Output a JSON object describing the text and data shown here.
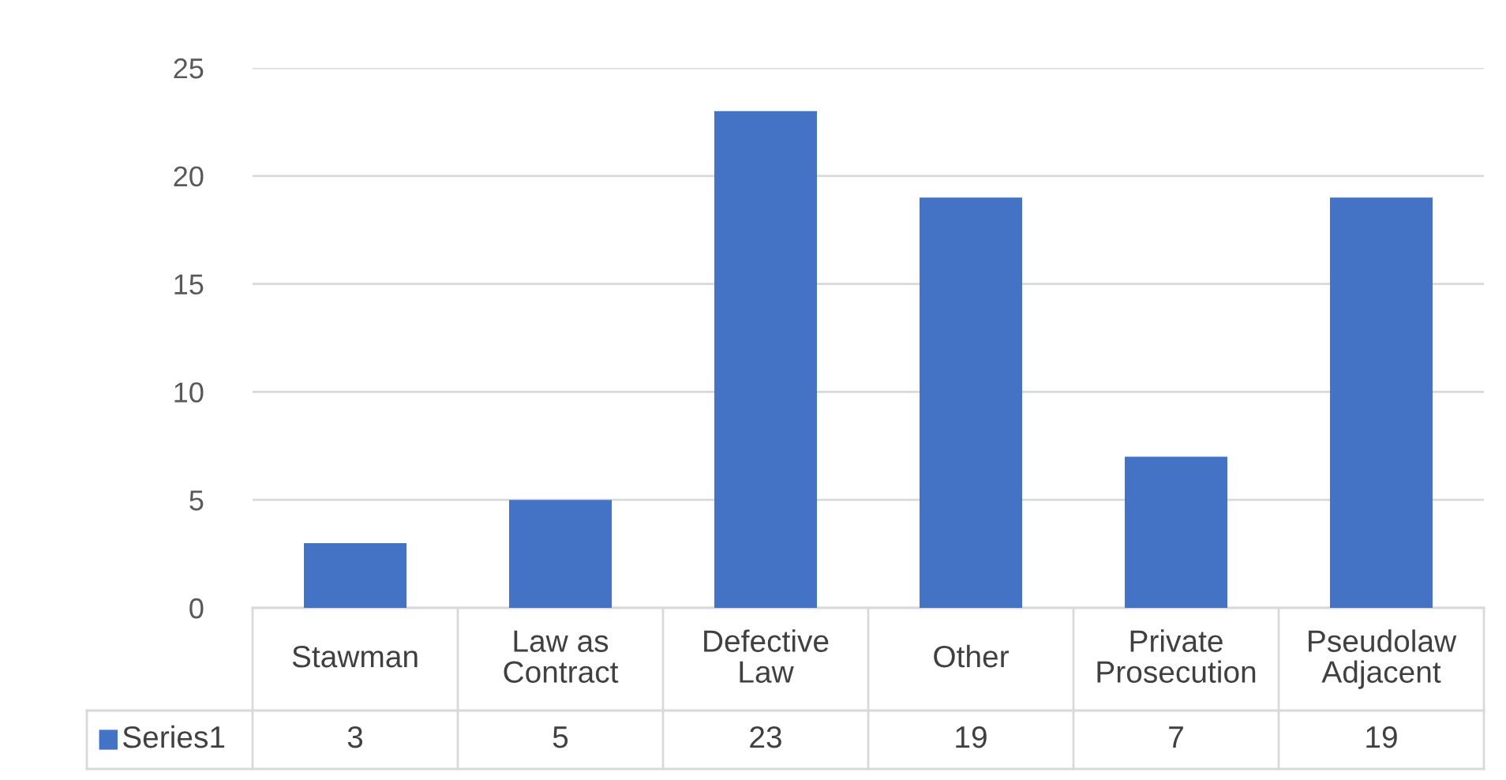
{
  "chart_data": {
    "type": "bar",
    "categories": [
      "Stawman",
      "Law as Contract",
      "Defective Law",
      "Other",
      "Private Prosecution",
      "Pseudolaw Adjacent"
    ],
    "series": [
      {
        "name": "Series1",
        "color": "#4472c4",
        "values": [
          3,
          5,
          23,
          19,
          7,
          19
        ]
      }
    ],
    "ylim": [
      0,
      25
    ],
    "yticks": [
      0,
      5,
      10,
      15,
      20,
      25
    ],
    "grid": "y",
    "data_labels": true
  }
}
